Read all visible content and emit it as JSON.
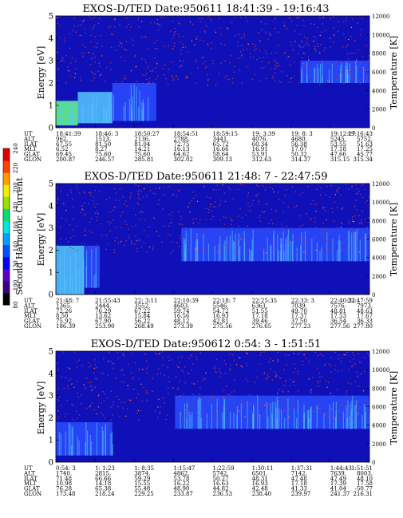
{
  "figure": {
    "colorbar": {
      "label": "Second Harmonic Current",
      "ticks": [
        "80",
        "100",
        "120",
        "140",
        "160",
        "180",
        "200",
        "220",
        "240"
      ],
      "colors": [
        "#000000",
        "#3a007a",
        "#5a00c8",
        "#0000ff",
        "#0050ff",
        "#00a0ff",
        "#00e8e0",
        "#00e070",
        "#9ae000",
        "#f0f000",
        "#ffa000",
        "#ff4000",
        "#e00000"
      ]
    },
    "panel_colors": {
      "background": "#1010b8",
      "mid": "#2a4cff",
      "bright": "#55c8ff",
      "hot": "#66ff88",
      "speckle": "#a03a6a",
      "speckle_hot": "#ff7a30"
    }
  },
  "chart_data": [
    {
      "type": "heatmap",
      "title": "EXOS-D/TED   Date:950611  18:41:39 - 19:16:43",
      "ylabel": "Energy [eV]",
      "y2label": "Temperature [K]",
      "ylim": [
        0,
        5
      ],
      "y_ticks": [
        "0",
        "1",
        "2",
        "3",
        "4",
        "5"
      ],
      "y2lim": [
        0,
        12000
      ],
      "y2_ticks": [
        "0",
        "2000",
        "4000",
        "6000",
        "8000",
        "10000",
        "12000"
      ],
      "row_labels": [
        "UT",
        "ALT",
        "ILAT",
        "MLT",
        "GLAT",
        "GLON"
      ],
      "columns": [
        [
          "18:41:39",
          "962.",
          "67.55",
          "6.52",
          "69.45",
          "200.87"
        ],
        [
          "18:46: 3",
          "1513.",
          "81.50",
          "8.27",
          "75.60",
          "246.57"
        ],
        [
          "18:50:27",
          "2136.",
          "81.04",
          "14.21",
          "75.60",
          "285.81"
        ],
        [
          "18:54:51",
          "2788.",
          "72.75",
          "16.13",
          "64.62",
          "302.02"
        ],
        [
          "18:59:15",
          "3441.",
          "65.72",
          "16.66",
          "58.64",
          "309.13"
        ],
        [
          "19: 3:39",
          "4076.",
          "60.34",
          "16.91",
          "53.91",
          "312.63"
        ],
        [
          "19: 8: 3",
          "4680.",
          "56.38",
          "17.07",
          "50.32",
          "314.37"
        ],
        [
          "19:12:27",
          "5245.",
          "53.55",
          "17.18",
          "47.66",
          "315.15"
        ],
        [
          "19:16:43",
          "5752.",
          "51.63",
          "17.25",
          "45.77",
          "315.34"
        ]
      ],
      "regions": [
        {
          "t0": 0.0,
          "t1": 0.07,
          "e_low": 0.1,
          "e_high": 1.2,
          "level": "hot"
        },
        {
          "t0": 0.07,
          "t1": 0.18,
          "e_low": 0.2,
          "e_high": 1.6,
          "level": "bright"
        },
        {
          "t0": 0.18,
          "t1": 0.32,
          "e_low": 0.3,
          "e_high": 2.0,
          "level": "mid"
        },
        {
          "t0": 0.78,
          "t1": 1.0,
          "e_low": 2.0,
          "e_high": 3.0,
          "level": "mid"
        }
      ]
    },
    {
      "type": "heatmap",
      "title": "EXOS-D/TED   Date:950611  21:48: 7 - 22:47:59",
      "ylabel": "Energy [eV]",
      "y2label": "Temperature [K]",
      "ylim": [
        0,
        5
      ],
      "y_ticks": [
        "0",
        "1",
        "2",
        "3",
        "4",
        "5"
      ],
      "y2lim": [
        0,
        12000
      ],
      "y2_ticks": [
        "0",
        "2000",
        "4000",
        "6000",
        "8000",
        "10000",
        "12000"
      ],
      "row_labels": [
        "UT",
        "ALT",
        "ILAT",
        "MLT",
        "GLAT",
        "GLON"
      ],
      "columns": [
        [
          "21:48: 7",
          "1365.",
          "72.26",
          "8.50",
          "75.92",
          "186.39"
        ],
        [
          "21:55:43",
          "2444.",
          "76.29",
          "13.62",
          "67.90",
          "253.90"
        ],
        [
          "22: 3:11",
          "3552.",
          "67.22",
          "15.84",
          "56.22",
          "268.49"
        ],
        [
          "22:10:39",
          "4603.",
          "59.74",
          "16.56",
          "48.12",
          "273.39"
        ],
        [
          "22:18: 7",
          "5546.",
          "54.72",
          "16.93",
          "42.81",
          "275.56"
        ],
        [
          "22:25:35",
          "6361.",
          "51.55",
          "17.18",
          "39.46",
          "276.65"
        ],
        [
          "22:33: 3",
          "7039.",
          "49.70",
          "17.37",
          "37.50",
          "277.23"
        ],
        [
          "22:40:31",
          "7576.",
          "48.81",
          "17.53",
          "36.54",
          "277.56"
        ],
        [
          "22:47:59",
          "7973.",
          "48.63",
          "17.67",
          "36.33",
          "277.80"
        ]
      ],
      "regions": [
        {
          "t0": 0.0,
          "t1": 0.09,
          "e_low": 0.0,
          "e_high": 2.2,
          "level": "bright"
        },
        {
          "t0": 0.09,
          "t1": 0.14,
          "e_low": 0.3,
          "e_high": 2.2,
          "level": "mid"
        },
        {
          "t0": 0.4,
          "t1": 1.0,
          "e_low": 1.5,
          "e_high": 3.0,
          "level": "mid"
        }
      ]
    },
    {
      "type": "heatmap",
      "title": "EXOS-D/TED   Date:950612   0:54: 3 - 1:51:51",
      "ylabel": "Energy [eV]",
      "y2label": "Temperature [K]",
      "ylim": [
        0,
        5
      ],
      "y_ticks": [
        "0",
        "1",
        "2",
        "3",
        "4",
        "5"
      ],
      "y2lim": [
        0,
        12000
      ],
      "y2_ticks": [
        "0",
        "2000",
        "4000",
        "6000",
        "8000",
        "10000",
        "12000"
      ],
      "row_labels": [
        "UT",
        "ALT",
        "ILAT",
        "MLT",
        "GLAT",
        "GLON"
      ],
      "columns": [
        [
          "0:54: 3",
          "1740.",
          "71.48",
          "10.98",
          "76.28",
          "173.48"
        ],
        [
          "1: 1:23",
          "2815.",
          "66.66",
          "14.18",
          "65.38",
          "218.24"
        ],
        [
          "1: 8:35",
          "3874.",
          "59.29",
          "15.55",
          "55.48",
          "229.25"
        ],
        [
          "1:15:47",
          "4862.",
          "53.78",
          "16.22",
          "48.90",
          "233.87"
        ],
        [
          "1:22:59",
          "5742.",
          "50.27",
          "16.63",
          "44.82",
          "236.53"
        ],
        [
          "1:30:11",
          "6501.",
          "48.31",
          "16.93",
          "42.48",
          "238.40"
        ],
        [
          "1:37:31",
          "7142.",
          "47.48",
          "17.18",
          "41.33",
          "239.97"
        ],
        [
          "1:44:43",
          "7639.",
          "47.49",
          "17.39",
          "41.04",
          "241.37"
        ],
        [
          "1:51:51",
          "8003.",
          "48.10",
          "17.58",
          "-50.77",
          "216.31"
        ]
      ],
      "regions": [
        {
          "t0": 0.0,
          "t1": 0.18,
          "e_low": 0.3,
          "e_high": 1.8,
          "level": "mid"
        },
        {
          "t0": 0.38,
          "t1": 1.0,
          "e_low": 1.5,
          "e_high": 3.0,
          "level": "mid"
        }
      ]
    }
  ]
}
